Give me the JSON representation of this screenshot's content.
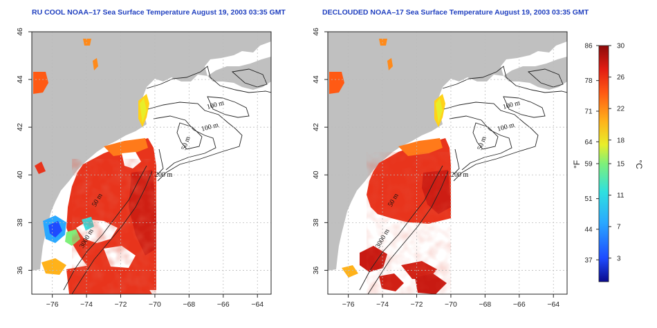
{
  "titles": {
    "left": "RU COOL NOAA–17 Sea Surface Temperature August 19, 2003 03:35 GMT",
    "right": "DECLOUDED NOAA–17 Sea Surface Temperature August 19, 2003 03:35 GMT"
  },
  "axes": {
    "x_ticks": [
      "−76",
      "−74",
      "−72",
      "−70",
      "−68",
      "−66",
      "−64"
    ],
    "y_ticks": [
      "46",
      "44",
      "42",
      "40",
      "38",
      "36"
    ],
    "x_range": [
      -77.2,
      -63.2
    ],
    "y_range": [
      35.0,
      46.0
    ]
  },
  "contour_labels": [
    "100 m",
    "100 m",
    "50 m",
    "200 m",
    "50 m",
    "3000 m"
  ],
  "colorbar": {
    "fahrenheit_ticks": [
      "86",
      "78",
      "71",
      "64",
      "59",
      "51",
      "44",
      "37"
    ],
    "celsius_ticks": [
      "30",
      "26",
      "22",
      "18",
      "15",
      "11",
      "7",
      "3"
    ],
    "fahrenheit_unit": "°F",
    "celsius_unit": "°C",
    "range_c": [
      0,
      30
    ]
  },
  "colors": {
    "land": "#c0c0c0",
    "ocean_nodata": "#ffffff",
    "title": "#1f3fbf",
    "warm": "#e8341c",
    "hot": "#c81a12",
    "coastal_yellow": "#e8e81c"
  }
}
